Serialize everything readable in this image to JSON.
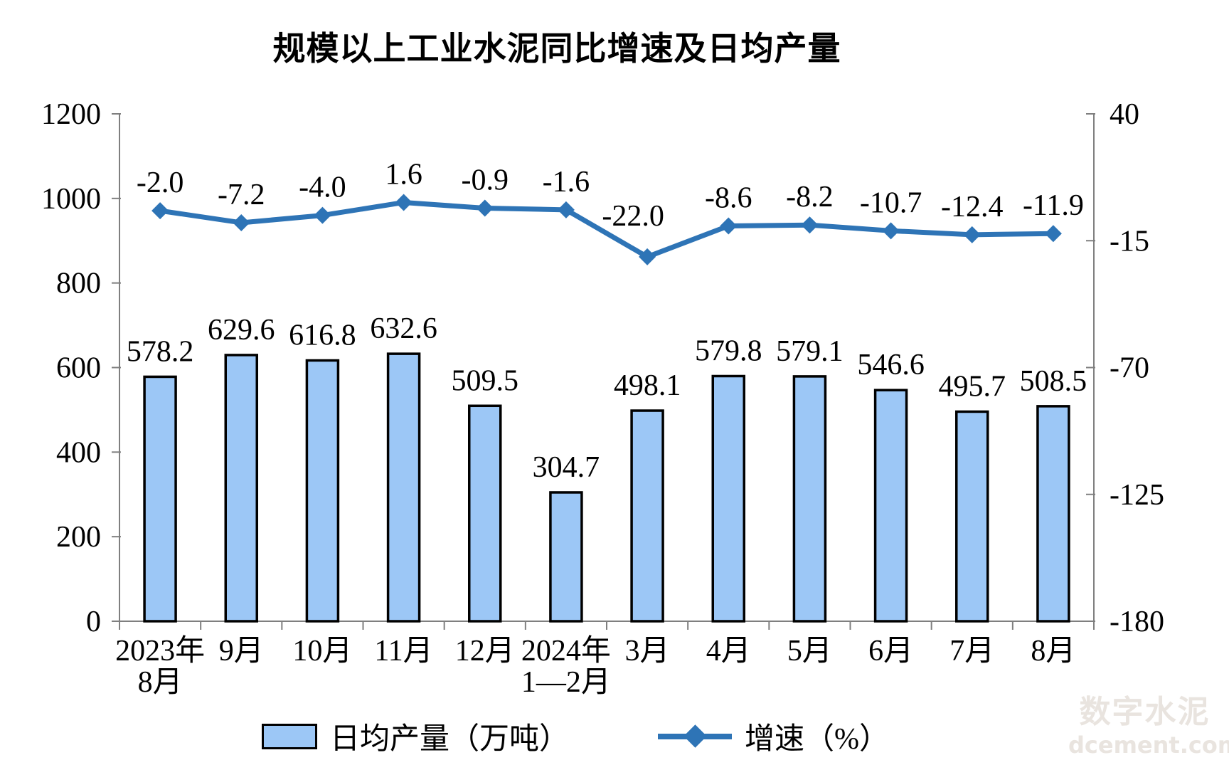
{
  "title": "规模以上工业水泥同比增速及日均产量",
  "legend": {
    "bar_label": "日均产量（万吨）",
    "line_label": "增速（%）"
  },
  "watermark": {
    "line1": "数字水泥",
    "line2": "dcement.com"
  },
  "chart_data": {
    "type": "bar+line",
    "title": "规模以上工业水泥同比增速及日均产量",
    "categories": [
      "2023年\n8月",
      "9月",
      "10月",
      "11月",
      "12月",
      "2024年\n1—2月",
      "3月",
      "4月",
      "5月",
      "6月",
      "7月",
      "8月"
    ],
    "series": [
      {
        "name": "日均产量（万吨）",
        "type": "bar",
        "axis": "left",
        "values": [
          578.2,
          629.6,
          616.8,
          632.6,
          509.5,
          304.7,
          498.1,
          579.8,
          579.1,
          546.6,
          495.7,
          508.5
        ],
        "labels": [
          "578.2",
          "629.6",
          "616.8",
          "632.6",
          "509.5",
          "304.7",
          "498.1",
          "579.8",
          "579.1",
          "546.6",
          "495.7",
          "508.5"
        ]
      },
      {
        "name": "增速（%）",
        "type": "line",
        "axis": "right",
        "values": [
          -2.0,
          -7.2,
          -4.0,
          1.6,
          -0.9,
          -1.6,
          -22.0,
          -8.6,
          -8.2,
          -10.7,
          -12.4,
          -11.9
        ],
        "labels": [
          "-2.0",
          "-7.2",
          "-4.0",
          "1.6",
          "-0.9",
          "-1.6",
          "-22.0",
          "-8.6",
          "-8.2",
          "-10.7",
          "-12.4",
          "-11.9"
        ]
      }
    ],
    "left_axis": {
      "min": 0,
      "max": 1200,
      "ticks": [
        0,
        200,
        400,
        600,
        800,
        1000,
        1200
      ]
    },
    "right_axis": {
      "min": -180,
      "max": 40,
      "ticks": [
        40,
        -15,
        -70,
        -125,
        -180
      ]
    },
    "grid": false,
    "legend_position": "bottom",
    "colors": {
      "bar_fill": "#9CC7F6",
      "bar_stroke": "#000000",
      "line": "#2E74B6",
      "axis": "#7F7F7F",
      "text": "#000000"
    }
  }
}
